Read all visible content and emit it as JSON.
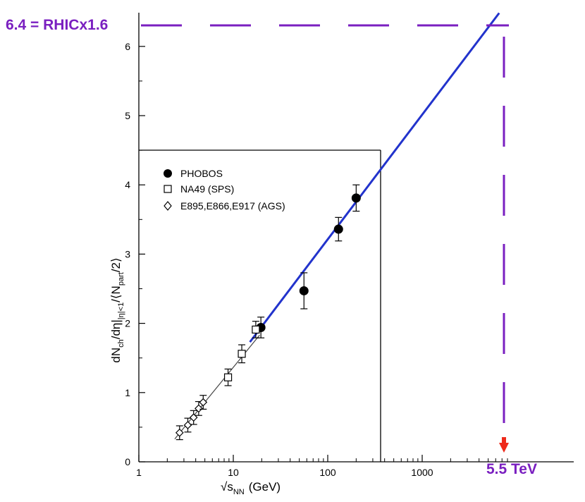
{
  "chart_data": {
    "type": "scatter",
    "x_scale": "log",
    "xlim": [
      1,
      8000
    ],
    "ylim": [
      0,
      6.5
    ],
    "x_ticks": [
      1,
      10,
      100,
      1000
    ],
    "x_tick_labels": [
      "1",
      "10",
      "100",
      "1000"
    ],
    "y_ticks": [
      0,
      1,
      2,
      3,
      4,
      5,
      6
    ],
    "y_tick_labels": [
      "0",
      "1",
      "2",
      "3",
      "4",
      "5",
      "6"
    ],
    "xlabel_prefix": "√s",
    "xlabel_sub": "NN",
    "xlabel_unit": "(GeV)",
    "ylabel_parts": {
      "a": "dN",
      "a_sub": "ch",
      "b": "/dη|",
      "b_sub": "|η|<1",
      "c": "/⟨N",
      "c_sub": "part",
      "d": "/2⟩"
    },
    "legend_placement": "top-left",
    "series": [
      {
        "name": "PHOBOS",
        "marker": "filled-circle",
        "x": [
          19.6,
          56,
          130,
          200
        ],
        "y": [
          1.94,
          2.47,
          3.36,
          3.81
        ],
        "err": [
          0.15,
          0.26,
          0.17,
          0.19
        ]
      },
      {
        "name": "NA49 (SPS)",
        "marker": "open-square",
        "x": [
          8.8,
          12.3,
          17.3
        ],
        "y": [
          1.22,
          1.56,
          1.91
        ],
        "err": [
          0.12,
          0.13,
          0.12
        ]
      },
      {
        "name": "E895,E866,E917 (AGS)",
        "marker": "open-diamond",
        "x": [
          2.7,
          3.3,
          3.8,
          4.3,
          4.8
        ],
        "y": [
          0.42,
          0.53,
          0.64,
          0.77,
          0.86
        ],
        "err": [
          0.1,
          0.1,
          0.1,
          0.1,
          0.1
        ]
      }
    ],
    "fit_line": {
      "x": [
        2.4,
        19
      ],
      "y": [
        0.33,
        1.83
      ],
      "color": "#444444"
    },
    "extrapolation": {
      "x": [
        15,
        5500
      ],
      "y": [
        1.73,
        6.4
      ],
      "color": "#2233cc"
    },
    "annotations": {
      "y_marker": {
        "label": "6.4 = RHICx1.6",
        "y": 6.4,
        "color": "#7a1fc0"
      },
      "x_marker": {
        "label": "5.5 TeV",
        "x": 5500,
        "color": "#7a1fc0"
      },
      "arrow_color": "#ee2a1b"
    }
  }
}
